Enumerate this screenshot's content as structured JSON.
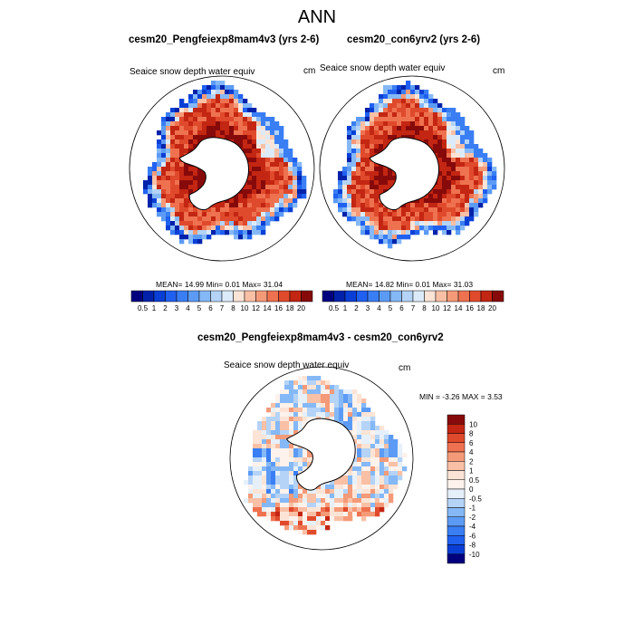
{
  "figure": {
    "title": "ANN",
    "top_panels": [
      {
        "case": "cesm20_Pengfeiexp8mam4v3 (yrs 2-6)",
        "variable": "Seaice snow depth water equiv",
        "units": "cm",
        "stats": "MEAN= 14.99  Min= 0.01  Max= 31.04"
      },
      {
        "case": "cesm20_con6yrv2 (yrs 2-6)",
        "variable": "Seaice snow depth water equiv",
        "units": "cm",
        "stats": "MEAN= 14.82  Min= 0.01  Max= 31.03"
      }
    ],
    "diff_panel": {
      "title": "cesm20_Pengfeiexp8mam4v3 - cesm20_con6yrv2",
      "variable": "Seaice snow depth water equiv",
      "units": "cm",
      "stats": "MIN = -3.26 MAX =  3.53"
    }
  },
  "chart_data": [
    {
      "type": "heatmap",
      "projection": "south-polar-stereographic",
      "title": "cesm20_Pengfeiexp8mam4v3 (yrs 2-6)",
      "variable": "Seaice snow depth water equiv",
      "units": "cm",
      "mean": 14.99,
      "min": 0.01,
      "max": 31.04,
      "colorbar_levels": [
        "0.5",
        "1",
        "2",
        "3",
        "4",
        "5",
        "6",
        "7",
        "8",
        "10",
        "12",
        "14",
        "16",
        "18",
        "20"
      ],
      "colors": [
        "#00007f",
        "#0022aa",
        "#0a3fd6",
        "#2060f0",
        "#3a7ef4",
        "#5c9bf5",
        "#85b8f7",
        "#b4d3f7",
        "#dcebfa",
        "#fbe4d6",
        "#f9c0a6",
        "#f59a78",
        "#ef7250",
        "#e04a2c",
        "#c32612",
        "#870a0a"
      ]
    },
    {
      "type": "heatmap",
      "projection": "south-polar-stereographic",
      "title": "cesm20_con6yrv2 (yrs 2-6)",
      "variable": "Seaice snow depth water equiv",
      "units": "cm",
      "mean": 14.82,
      "min": 0.01,
      "max": 31.03,
      "colorbar_levels": [
        "0.5",
        "1",
        "2",
        "3",
        "4",
        "5",
        "6",
        "7",
        "8",
        "10",
        "12",
        "14",
        "16",
        "18",
        "20"
      ],
      "colors": [
        "#00007f",
        "#0022aa",
        "#0a3fd6",
        "#2060f0",
        "#3a7ef4",
        "#5c9bf5",
        "#85b8f7",
        "#b4d3f7",
        "#dcebfa",
        "#fbe4d6",
        "#f9c0a6",
        "#f59a78",
        "#ef7250",
        "#e04a2c",
        "#c32612",
        "#870a0a"
      ]
    },
    {
      "type": "heatmap",
      "projection": "south-polar-stereographic",
      "title": "cesm20_Pengfeiexp8mam4v3 - cesm20_con6yrv2",
      "variable": "Seaice snow depth water equiv",
      "units": "cm",
      "min": -3.26,
      "max": 3.53,
      "colorbar_levels": [
        "10",
        "8",
        "6",
        "4",
        "2",
        "1",
        "0.5",
        "0",
        "-0.5",
        "-1",
        "-2",
        "-4",
        "-6",
        "-8",
        "-10"
      ],
      "colors": [
        "#870a0a",
        "#c32612",
        "#e04a2c",
        "#ef7250",
        "#f59a78",
        "#f9c0a6",
        "#fbe4d6",
        "#fdf2ec",
        "#e6f0fa",
        "#b4d3f7",
        "#85b8f7",
        "#5c9bf5",
        "#3a7ef4",
        "#2060f0",
        "#0a3fd6",
        "#00007f"
      ]
    }
  ]
}
